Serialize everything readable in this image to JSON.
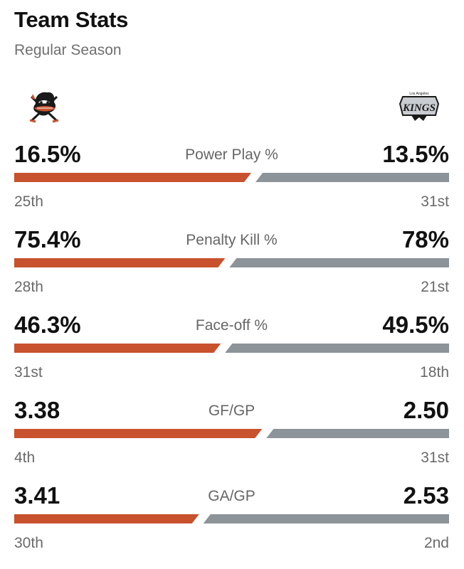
{
  "header": {
    "title": "Team Stats",
    "subtitle": "Regular Season"
  },
  "teams": {
    "home": {
      "logo": "anaheim-ducks-logo",
      "color": "#c8512e"
    },
    "away": {
      "logo": "la-kings-logo",
      "color": "#8c9399",
      "logo_text": "KINGS",
      "logo_small_text": "Los Angeles"
    }
  },
  "stats": [
    {
      "label": "Power Play %",
      "home_value": "16.5%",
      "away_value": "13.5%",
      "home_rank": "25th",
      "away_rank": "31st",
      "home_share": 0.55
    },
    {
      "label": "Penalty Kill %",
      "home_value": "75.4%",
      "away_value": "78%",
      "home_rank": "28th",
      "away_rank": "21st",
      "home_share": 0.49
    },
    {
      "label": "Face-off %",
      "home_value": "46.3%",
      "away_value": "49.5%",
      "home_rank": "31st",
      "away_rank": "18th",
      "home_share": 0.48
    },
    {
      "label": "GF/GP",
      "home_value": "3.38",
      "away_value": "2.50",
      "home_rank": "4th",
      "away_rank": "31st",
      "home_share": 0.575
    },
    {
      "label": "GA/GP",
      "home_value": "3.41",
      "away_value": "2.53",
      "home_rank": "30th",
      "away_rank": "2nd",
      "home_share": 0.43
    }
  ]
}
